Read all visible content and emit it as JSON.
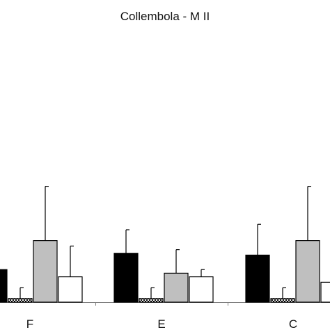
{
  "chart_data": {
    "type": "bar",
    "title": "Collembola - M II",
    "categories": [
      "F",
      "E",
      "C"
    ],
    "series": [
      {
        "fill": "#000000",
        "values": [
          18,
          27,
          26
        ],
        "errors": [
          0,
          13,
          17
        ]
      },
      {
        "fill": "checker",
        "values": [
          2,
          2,
          2
        ],
        "errors": [
          6,
          6,
          6
        ]
      },
      {
        "fill": "#bfbfbf",
        "values": [
          34,
          16,
          34
        ],
        "errors": [
          30,
          13,
          30
        ]
      },
      {
        "fill": "#ffffff",
        "values": [
          14,
          14,
          11
        ],
        "errors": [
          17,
          4,
          0
        ]
      }
    ],
    "xlabel": "",
    "ylabel": "",
    "ylim": [
      0,
      100
    ],
    "grid": false
  }
}
